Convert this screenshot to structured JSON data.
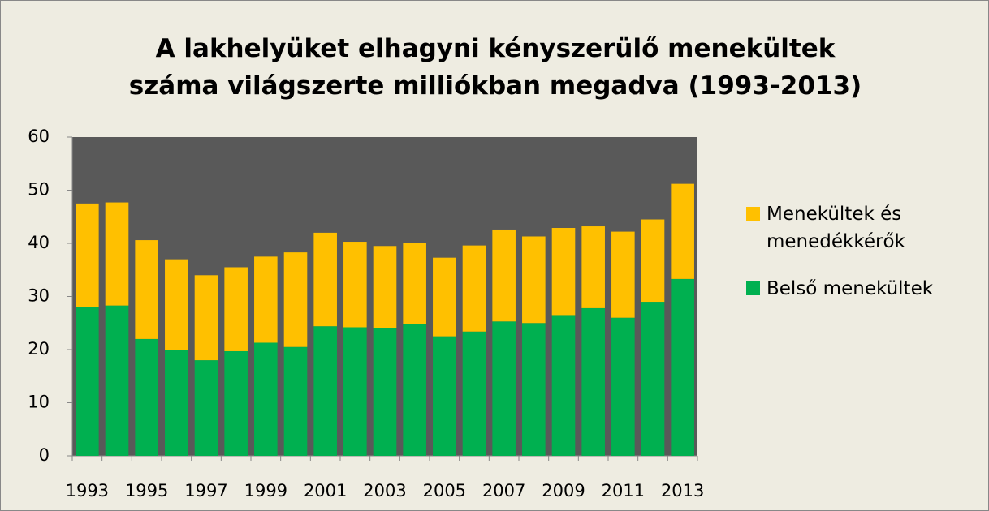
{
  "chart_data": {
    "type": "stacked-bar",
    "title": "A lakhelyüket elhagyni kényszerülő menekültek száma világszerte milliókban megadva (1993-2013)",
    "categories": [
      "1993",
      null,
      "1995",
      null,
      "1997",
      null,
      "1999",
      null,
      "2001",
      null,
      "2003",
      null,
      "2005",
      null,
      "2007",
      null,
      "2009",
      null,
      "2011",
      null,
      "2013"
    ],
    "series": [
      {
        "name": "Belső menekültek",
        "color": "#00b050",
        "values": [
          28.0,
          28.3,
          22.0,
          20.0,
          18.0,
          19.7,
          21.3,
          20.5,
          24.4,
          24.2,
          24.0,
          24.8,
          22.5,
          23.4,
          25.3,
          25.0,
          26.5,
          27.8,
          26.0,
          29.0,
          33.3
        ]
      },
      {
        "name": "Menekültek és menedékkérők",
        "color": "#ffc000",
        "values": [
          19.5,
          19.4,
          18.6,
          17.0,
          16.0,
          15.8,
          16.2,
          17.8,
          17.6,
          16.1,
          15.5,
          15.2,
          14.8,
          16.2,
          17.3,
          16.3,
          16.4,
          15.4,
          16.2,
          15.5,
          17.9
        ]
      }
    ],
    "ylim": [
      0,
      60
    ],
    "yticks": [
      0,
      10,
      20,
      30,
      40,
      50,
      60
    ],
    "grid": true,
    "legend": "right"
  }
}
